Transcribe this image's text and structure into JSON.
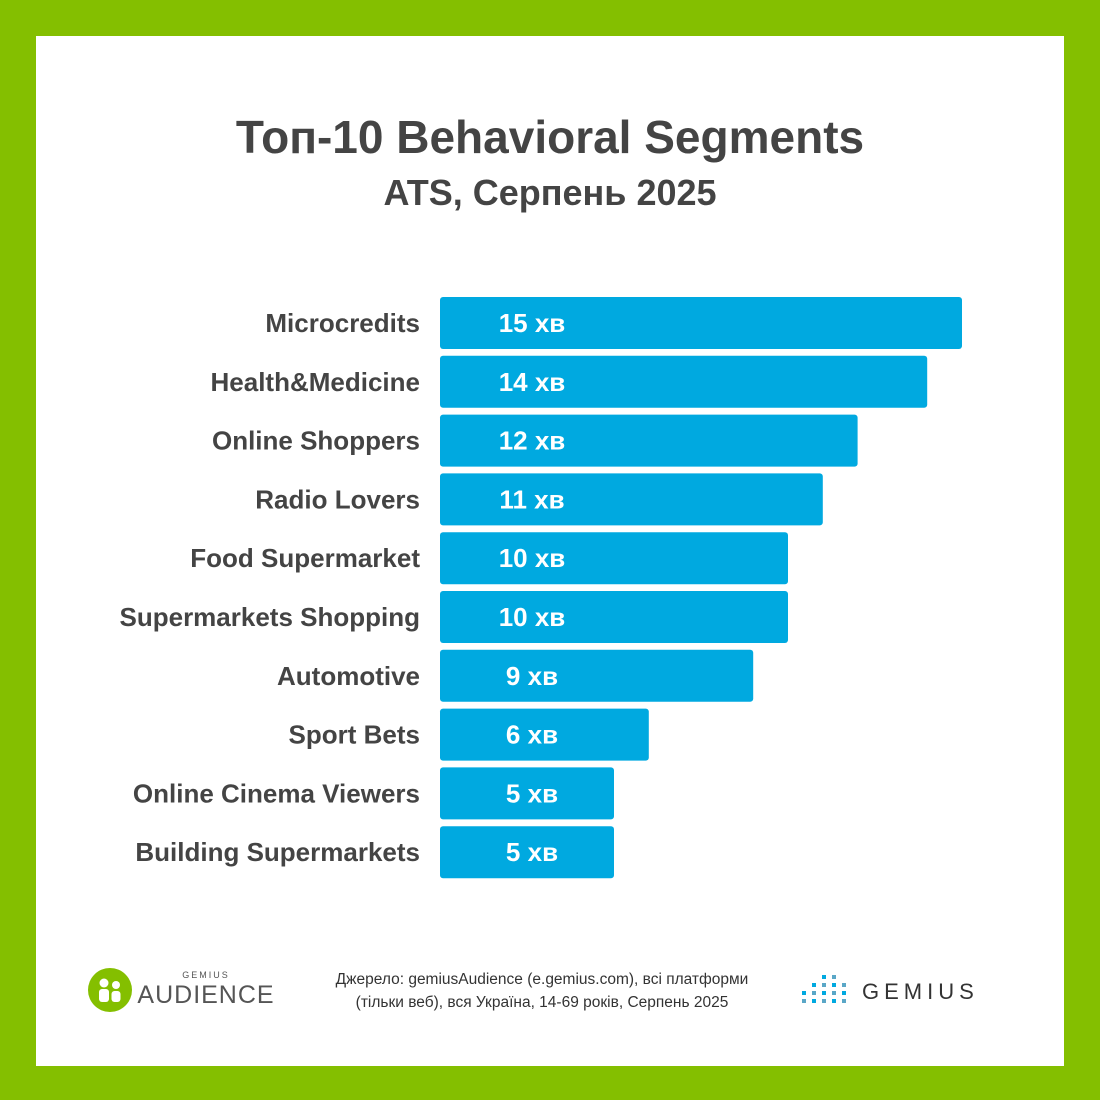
{
  "header": {
    "title": "Топ-10 Behavioral Segments",
    "subtitle": "ATS, Серпень 2025"
  },
  "colors": {
    "frame": "#84bf00",
    "bar": "#00a9e0",
    "label": "#444444",
    "bar_text": "#ffffff"
  },
  "chart_data": {
    "type": "bar",
    "orientation": "horizontal",
    "categories": [
      "Microcredits",
      "Health&Medicine",
      "Online Shoppers",
      "Radio Lovers",
      "Food Supermarket",
      "Supermarkets Shopping",
      "Automotive",
      "Sport Bets",
      "Online Cinema Viewers",
      "Building Supermarkets"
    ],
    "values": [
      15,
      14,
      12,
      11,
      10,
      10,
      9,
      6,
      5,
      5
    ],
    "value_labels": [
      "15 хв",
      "14 хв",
      "12 хв",
      "11 хв",
      "10 хв",
      "10 хв",
      "9 хв",
      "6 хв",
      "5 хв",
      "5 хв"
    ],
    "unit": "хв",
    "grid": false,
    "legend": "none"
  },
  "footer": {
    "logo_left_small": "GEMIUS",
    "logo_left_main": "AUDIENCE",
    "source_line1": "Джерело: gemiusAudience (e.gemius.com), всі платформи",
    "source_line2": "(тільки веб), вся Україна, 14-69 років, Серпень 2025",
    "logo_right": "GEMIUS"
  }
}
